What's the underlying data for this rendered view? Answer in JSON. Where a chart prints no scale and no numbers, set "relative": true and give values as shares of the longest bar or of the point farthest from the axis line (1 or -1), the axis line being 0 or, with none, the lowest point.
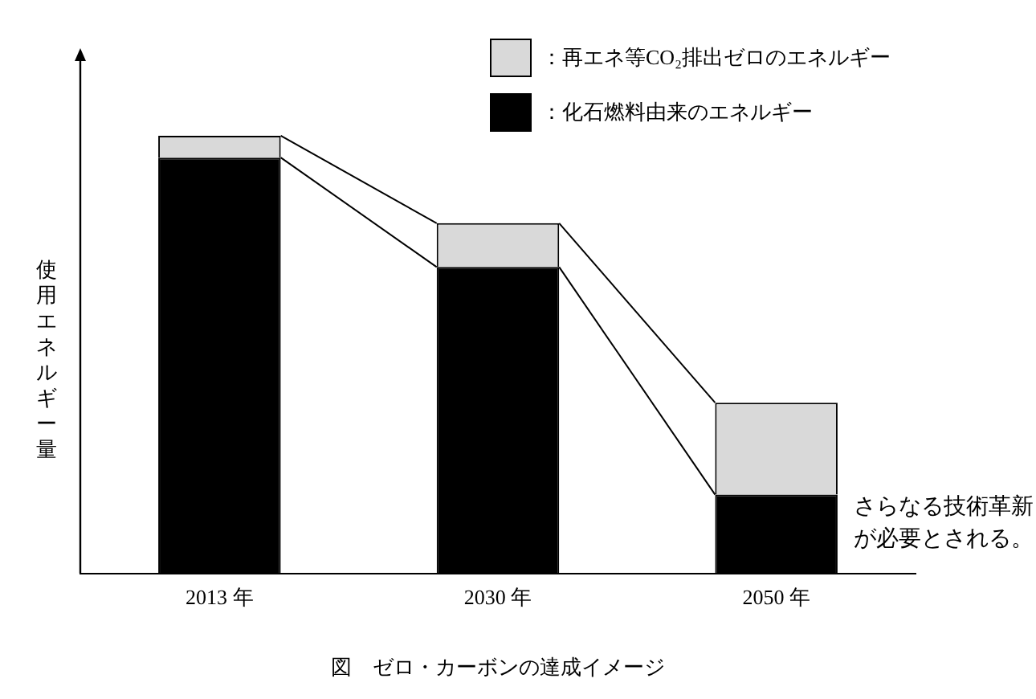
{
  "chart_data": {
    "type": "bar",
    "title": "図　ゼロ・カーボンの達成イメージ",
    "ylabel": "使用エネルギー量",
    "categories": [
      "2013 年",
      "2030 年",
      "2050 年"
    ],
    "stacked": true,
    "relative": true,
    "legend": "top right",
    "grid": false,
    "series": [
      {
        "name": "：化石燃料由来のエネルギー",
        "color": "#000000",
        "values": [
          0.95,
          0.7,
          0.18
        ]
      },
      {
        "name": "：再エネ等CO₂排出ゼロのエネルギー",
        "color": "#d9d9d9",
        "values": [
          0.05,
          0.1,
          0.21
        ]
      }
    ],
    "annotations": [
      "さらなる技術革新が必要とされる。"
    ]
  }
}
